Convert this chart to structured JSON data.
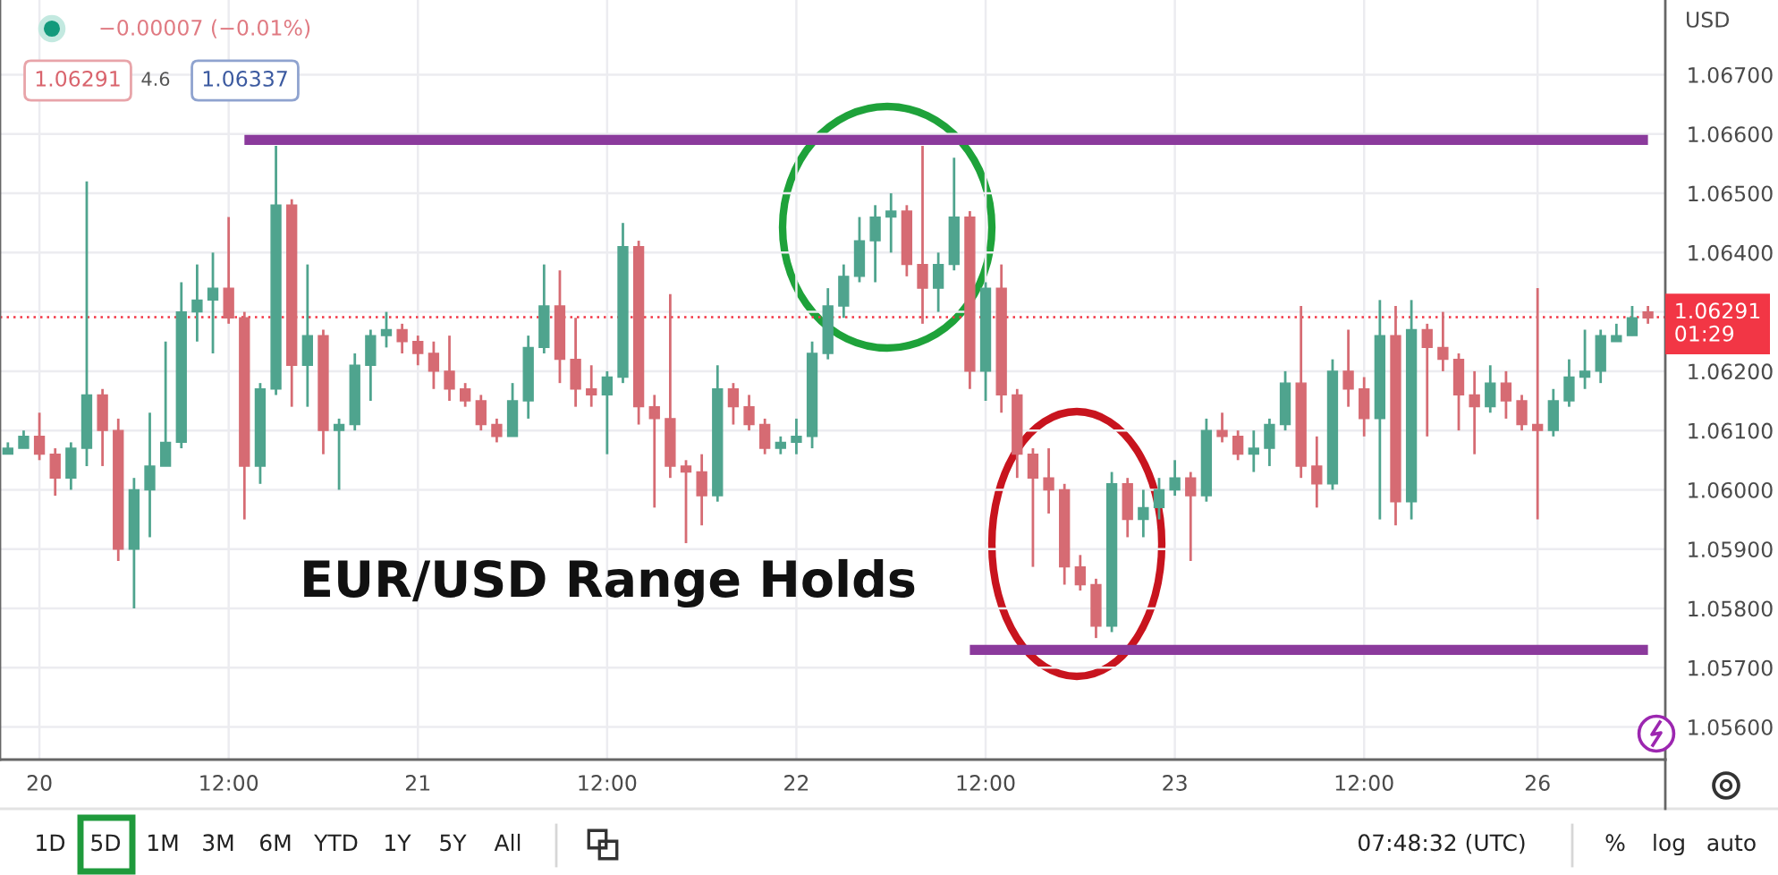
{
  "chart_data": {
    "type": "candlestick",
    "title": "EUR/USD Range Holds",
    "ylabel": "USD",
    "categories": [
      null,
      null,
      "20",
      null,
      null,
      null,
      null,
      null,
      null,
      null,
      null,
      null,
      null,
      null,
      "12:00",
      null,
      null,
      null,
      null,
      null,
      null,
      null,
      null,
      null,
      null,
      null,
      "21",
      null,
      null,
      null,
      null,
      null,
      null,
      null,
      null,
      null,
      null,
      null,
      "12:00",
      null,
      null,
      null,
      null,
      null,
      null,
      null,
      null,
      null,
      null,
      null,
      "22",
      null,
      null,
      null,
      null,
      null,
      null,
      null,
      null,
      null,
      null,
      null,
      "12:00",
      null,
      null,
      null,
      null,
      null,
      null,
      null,
      null,
      null,
      null,
      null,
      "23",
      null,
      null,
      null,
      null,
      null,
      null,
      null,
      null,
      null,
      null,
      null,
      "12:00",
      null,
      null,
      null,
      null,
      null,
      null,
      null,
      null,
      null,
      null,
      "26",
      null,
      null,
      null,
      null,
      null,
      null,
      null
    ],
    "ohlc": [
      [
        1.0606,
        1.0608,
        1.0606,
        1.0607
      ],
      [
        1.0607,
        1.061,
        1.0607,
        1.0609
      ],
      [
        1.0609,
        1.0613,
        1.0605,
        1.0606
      ],
      [
        1.0606,
        1.0607,
        1.0599,
        1.0602
      ],
      [
        1.0602,
        1.0608,
        1.06,
        1.0607
      ],
      [
        1.0607,
        1.0652,
        1.0604,
        1.0616
      ],
      [
        1.0616,
        1.0617,
        1.0604,
        1.061
      ],
      [
        1.061,
        1.0612,
        1.0588,
        1.059
      ],
      [
        1.059,
        1.0602,
        1.058,
        1.06
      ],
      [
        1.06,
        1.0613,
        1.0592,
        1.0604
      ],
      [
        1.0604,
        1.0625,
        1.0604,
        1.0608
      ],
      [
        1.0608,
        1.0635,
        1.0607,
        1.063
      ],
      [
        1.063,
        1.0638,
        1.0625,
        1.0632
      ],
      [
        1.0632,
        1.064,
        1.0623,
        1.0634
      ],
      [
        1.0634,
        1.0646,
        1.0628,
        1.0629
      ],
      [
        1.0629,
        1.063,
        1.0595,
        1.0604
      ],
      [
        1.0604,
        1.0618,
        1.0601,
        1.0617
      ],
      [
        1.0617,
        1.0658,
        1.0616,
        1.0648
      ],
      [
        1.0648,
        1.0649,
        1.0614,
        1.0621
      ],
      [
        1.0621,
        1.0638,
        1.0614,
        1.0626
      ],
      [
        1.0626,
        1.0627,
        1.0606,
        1.061
      ],
      [
        1.061,
        1.0612,
        1.06,
        1.0611
      ],
      [
        1.0611,
        1.0623,
        1.061,
        1.0621
      ],
      [
        1.0621,
        1.0627,
        1.0615,
        1.0626
      ],
      [
        1.0626,
        1.063,
        1.0624,
        1.0627
      ],
      [
        1.0627,
        1.0628,
        1.0623,
        1.0625
      ],
      [
        1.0625,
        1.0626,
        1.0621,
        1.0623
      ],
      [
        1.0623,
        1.0625,
        1.0617,
        1.062
      ],
      [
        1.062,
        1.0626,
        1.0615,
        1.0617
      ],
      [
        1.0617,
        1.0618,
        1.0614,
        1.0615
      ],
      [
        1.0615,
        1.0616,
        1.061,
        1.0611
      ],
      [
        1.0611,
        1.0612,
        1.0608,
        1.0609
      ],
      [
        1.0609,
        1.0618,
        1.0609,
        1.0615
      ],
      [
        1.0615,
        1.0626,
        1.0612,
        1.0624
      ],
      [
        1.0624,
        1.0638,
        1.0623,
        1.0631
      ],
      [
        1.0631,
        1.0637,
        1.0618,
        1.0622
      ],
      [
        1.0622,
        1.0629,
        1.0614,
        1.0617
      ],
      [
        1.0617,
        1.0621,
        1.0614,
        1.0616
      ],
      [
        1.0616,
        1.062,
        1.0606,
        1.0619
      ],
      [
        1.0619,
        1.0645,
        1.0618,
        1.0641
      ],
      [
        1.0641,
        1.0642,
        1.0611,
        1.0614
      ],
      [
        1.0614,
        1.0616,
        1.0597,
        1.0612
      ],
      [
        1.0612,
        1.0633,
        1.0602,
        1.0604
      ],
      [
        1.0604,
        1.0605,
        1.0591,
        1.0603
      ],
      [
        1.0603,
        1.0606,
        1.0594,
        1.0599
      ],
      [
        1.0599,
        1.0621,
        1.0598,
        1.0617
      ],
      [
        1.0617,
        1.0618,
        1.0611,
        1.0614
      ],
      [
        1.0614,
        1.0616,
        1.061,
        1.0611
      ],
      [
        1.0611,
        1.0612,
        1.0606,
        1.0607
      ],
      [
        1.0607,
        1.0609,
        1.0606,
        1.0608
      ],
      [
        1.0608,
        1.0612,
        1.0606,
        1.0609
      ],
      [
        1.0609,
        1.0625,
        1.0607,
        1.0623
      ],
      [
        1.0623,
        1.0634,
        1.0622,
        1.0631
      ],
      [
        1.0631,
        1.0638,
        1.0629,
        1.0636
      ],
      [
        1.0636,
        1.0646,
        1.0635,
        1.0642
      ],
      [
        1.0642,
        1.0648,
        1.0635,
        1.0646
      ],
      [
        1.0646,
        1.065,
        1.064,
        1.0647
      ],
      [
        1.0647,
        1.0648,
        1.0636,
        1.0638
      ],
      [
        1.0638,
        1.0658,
        1.0628,
        1.0634
      ],
      [
        1.0634,
        1.064,
        1.063,
        1.0638
      ],
      [
        1.0638,
        1.0656,
        1.0637,
        1.0646
      ],
      [
        1.0646,
        1.0647,
        1.0617,
        1.062
      ],
      [
        1.062,
        1.0635,
        1.0615,
        1.0634
      ],
      [
        1.0634,
        1.0638,
        1.0613,
        1.0616
      ],
      [
        1.0616,
        1.0617,
        1.0602,
        1.0606
      ],
      [
        1.0606,
        1.0607,
        1.0587,
        1.0602
      ],
      [
        1.0602,
        1.0607,
        1.0596,
        1.06
      ],
      [
        1.06,
        1.0601,
        1.0584,
        1.0587
      ],
      [
        1.0587,
        1.0589,
        1.0583,
        1.0584
      ],
      [
        1.0584,
        1.0585,
        1.0575,
        1.0577
      ],
      [
        1.0577,
        1.0603,
        1.0576,
        1.0601
      ],
      [
        1.0601,
        1.0602,
        1.0592,
        1.0595
      ],
      [
        1.0595,
        1.06,
        1.0592,
        1.0597
      ],
      [
        1.0597,
        1.0602,
        1.0595,
        1.06
      ],
      [
        1.06,
        1.0605,
        1.0599,
        1.0602
      ],
      [
        1.0602,
        1.0603,
        1.0588,
        1.0599
      ],
      [
        1.0599,
        1.0612,
        1.0598,
        1.061
      ],
      [
        1.061,
        1.0613,
        1.0608,
        1.0609
      ],
      [
        1.0609,
        1.061,
        1.0605,
        1.0606
      ],
      [
        1.0606,
        1.061,
        1.0603,
        1.0607
      ],
      [
        1.0607,
        1.0612,
        1.0604,
        1.0611
      ],
      [
        1.0611,
        1.062,
        1.061,
        1.0618
      ],
      [
        1.0618,
        1.0631,
        1.0602,
        1.0604
      ],
      [
        1.0604,
        1.0609,
        1.0597,
        1.0601
      ],
      [
        1.0601,
        1.0622,
        1.06,
        1.062
      ],
      [
        1.062,
        1.0627,
        1.0614,
        1.0617
      ],
      [
        1.0617,
        1.0619,
        1.0609,
        1.0612
      ],
      [
        1.0612,
        1.0632,
        1.0595,
        1.0626
      ],
      [
        1.0626,
        1.0631,
        1.0594,
        1.0598
      ],
      [
        1.0598,
        1.0632,
        1.0595,
        1.0627
      ],
      [
        1.0627,
        1.0628,
        1.0609,
        1.0624
      ],
      [
        1.0624,
        1.063,
        1.062,
        1.0622
      ],
      [
        1.0622,
        1.0623,
        1.061,
        1.0616
      ],
      [
        1.0616,
        1.062,
        1.0606,
        1.0614
      ],
      [
        1.0614,
        1.0621,
        1.0613,
        1.0618
      ],
      [
        1.0618,
        1.062,
        1.0612,
        1.0615
      ],
      [
        1.0615,
        1.0616,
        1.061,
        1.0611
      ],
      [
        1.0611,
        1.0634,
        1.0595,
        1.061
      ],
      [
        1.061,
        1.0617,
        1.0609,
        1.0615
      ],
      [
        1.0615,
        1.0622,
        1.0614,
        1.0619
      ],
      [
        1.0619,
        1.0627,
        1.0617,
        1.062
      ],
      [
        1.062,
        1.0627,
        1.0618,
        1.0626
      ],
      [
        1.0625,
        1.0628,
        1.0625,
        1.0626
      ],
      [
        1.0626,
        1.0631,
        1.0626,
        1.0629
      ],
      [
        1.063,
        1.0631,
        1.0628,
        1.0629
      ]
    ],
    "colors": [
      "#4fa48e",
      "#4fa48e",
      "#d66b73",
      "#d66b73",
      "#4fa48e",
      "#4fa48e",
      "#d66b73",
      "#d66b73",
      "#4fa48e",
      "#4fa48e",
      "#4fa48e",
      "#4fa48e",
      "#4fa48e",
      "#4fa48e",
      "#d66b73",
      "#d66b73",
      "#4fa48e",
      "#4fa48e",
      "#d66b73",
      "#4fa48e",
      "#d66b73",
      "#4fa48e",
      "#4fa48e",
      "#4fa48e",
      "#4fa48e",
      "#d66b73",
      "#d66b73",
      "#d66b73",
      "#d66b73",
      "#d66b73",
      "#d66b73",
      "#d66b73",
      "#4fa48e",
      "#4fa48e",
      "#4fa48e",
      "#d66b73",
      "#d66b73",
      "#d66b73",
      "#4fa48e",
      "#4fa48e",
      "#d66b73",
      "#d66b73",
      "#d66b73",
      "#d66b73",
      "#d66b73",
      "#4fa48e",
      "#d66b73",
      "#d66b73",
      "#d66b73",
      "#4fa48e",
      "#4fa48e",
      "#4fa48e",
      "#4fa48e",
      "#4fa48e",
      "#4fa48e",
      "#4fa48e",
      "#4fa48e",
      "#d66b73",
      "#d66b73",
      "#4fa48e",
      "#4fa48e",
      "#d66b73",
      "#4fa48e",
      "#d66b73",
      "#d66b73",
      "#d66b73",
      "#d66b73",
      "#d66b73",
      "#d66b73",
      "#d66b73",
      "#4fa48e",
      "#d66b73",
      "#4fa48e",
      "#4fa48e",
      "#4fa48e",
      "#d66b73",
      "#4fa48e",
      "#d66b73",
      "#d66b73",
      "#4fa48e",
      "#4fa48e",
      "#4fa48e",
      "#d66b73",
      "#d66b73",
      "#4fa48e",
      "#d66b73",
      "#d66b73",
      "#4fa48e",
      "#d66b73",
      "#4fa48e",
      "#d66b73",
      "#d66b73",
      "#d66b73",
      "#d66b73",
      "#4fa48e",
      "#d66b73",
      "#d66b73",
      "#d66b73",
      "#4fa48e",
      "#4fa48e",
      "#4fa48e",
      "#4fa48e",
      "#4fa48e",
      "#4fa48e",
      "#d66b73"
    ],
    "series": [
      {
        "type": "line",
        "color": "#8b3a9c",
        "values": [
          null,
          null,
          null,
          null,
          null,
          null,
          null,
          null,
          null,
          null,
          null,
          null,
          null,
          null,
          null,
          1.0659,
          1.0659,
          1.0659,
          1.0659,
          1.0659,
          1.0659,
          1.0659,
          1.0659,
          1.0659,
          1.0659,
          1.0659,
          1.0659,
          1.0659,
          1.0659,
          1.0659,
          1.0659,
          1.0659,
          1.0659,
          1.0659,
          1.0659,
          1.0659,
          1.0659,
          1.0659,
          1.0659,
          1.0659,
          1.0659,
          1.0659,
          1.0659,
          1.0659,
          1.0659,
          1.0659,
          1.0659,
          1.0659,
          1.0659,
          1.0659,
          1.0659,
          1.0659,
          1.0659,
          1.0659,
          1.0659,
          1.0659,
          1.0659,
          1.0659,
          1.0659,
          1.0659,
          1.0659,
          1.0659,
          1.0659,
          1.0659,
          1.0659,
          1.0659,
          1.0659,
          1.0659,
          1.0659,
          1.0659,
          1.0659,
          1.0659,
          1.0659,
          1.0659,
          1.0659,
          1.0659,
          1.0659,
          1.0659,
          1.0659,
          1.0659,
          1.0659,
          1.0659,
          1.0659,
          1.0659,
          1.0659,
          1.0659,
          1.0659,
          1.0659,
          1.0659,
          1.0659,
          1.0659,
          1.0659,
          1.0659,
          1.0659,
          1.0659,
          1.0659,
          1.0659,
          1.0659,
          1.0659,
          1.0659,
          1.0659,
          1.0659,
          1.0659,
          1.0659,
          1.0659
        ]
      },
      {
        "type": "line",
        "color": "#8b3a9c",
        "values": [
          null,
          null,
          null,
          null,
          null,
          null,
          null,
          null,
          null,
          null,
          null,
          null,
          null,
          null,
          null,
          null,
          null,
          null,
          null,
          null,
          null,
          null,
          null,
          null,
          null,
          null,
          null,
          null,
          null,
          null,
          null,
          null,
          null,
          null,
          null,
          null,
          null,
          null,
          null,
          null,
          null,
          null,
          null,
          null,
          null,
          null,
          null,
          null,
          null,
          null,
          null,
          null,
          null,
          null,
          null,
          null,
          null,
          null,
          null,
          null,
          null,
          1.0573,
          1.0573,
          1.0573,
          1.0573,
          1.0573,
          1.0573,
          1.0573,
          1.0573,
          1.0573,
          1.0573,
          1.0573,
          1.0573,
          1.0573,
          1.0573,
          1.0573,
          1.0573,
          1.0573,
          1.0573,
          1.0573,
          1.0573,
          1.0573,
          1.0573,
          1.0573,
          1.0573,
          1.0573,
          1.0573,
          1.0573,
          1.0573,
          1.0573,
          1.0573,
          1.0573,
          1.0573,
          1.0573,
          1.0573,
          1.0573,
          1.0573,
          1.0573,
          1.0573,
          1.0573,
          1.0573,
          1.0573,
          1.0573,
          1.0573,
          1.0573
        ]
      }
    ],
    "ylim": [
      1.05545,
      1.06826
    ],
    "yticks": [
      {
        "value": 1.056,
        "label": "1.05600"
      },
      {
        "value": 1.057,
        "label": "1.05700"
      },
      {
        "value": 1.058,
        "label": "1.05800"
      },
      {
        "value": 1.059,
        "label": "1.05900"
      },
      {
        "value": 1.06,
        "label": "1.06000"
      },
      {
        "value": 1.061,
        "label": "1.06100"
      },
      {
        "value": 1.062,
        "label": "1.06200"
      },
      {
        "value": 1.063,
        "label": null
      },
      {
        "value": 1.064,
        "label": "1.06400"
      },
      {
        "value": 1.065,
        "label": "1.06500"
      },
      {
        "value": 1.066,
        "label": "1.06600"
      },
      {
        "value": 1.067,
        "label": "1.06700"
      }
    ],
    "grid": true,
    "ref_lines": [
      {
        "axis": "y",
        "value": 1.06291,
        "label": "1.06291\n01:29",
        "color": "#f23645",
        "line_style": "dotted"
      }
    ],
    "annotations": [
      "−0.00007 (−0.01%)",
      "1.06291",
      "4.6",
      "1.06337",
      "1D",
      "5D",
      "1M",
      "3M",
      "6M",
      "YTD",
      "1Y",
      "5Y",
      "All",
      "07:48:32 (UTC)",
      "%",
      "log",
      "auto"
    ]
  }
}
